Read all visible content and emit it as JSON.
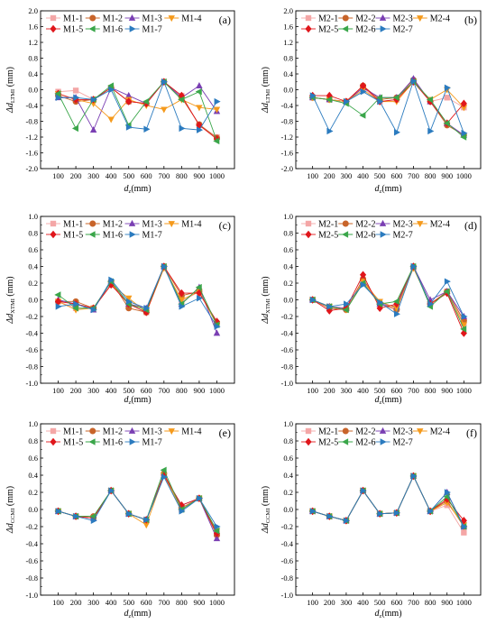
{
  "chart_data": [
    {
      "panel": "(a)",
      "type": "line",
      "ylabel": {
        "main": "Δd",
        "sub": "LTMI",
        "unit": " (mm)"
      },
      "xlabel": {
        "main": "d",
        "sub": "z",
        "unit": "(mm)"
      },
      "x": [
        100,
        200,
        300,
        400,
        500,
        600,
        700,
        800,
        900,
        1000
      ],
      "ylim": [
        -2.0,
        2.0
      ],
      "yticks": [
        "-2.0",
        "-1.6",
        "-1.2",
        "-0.8",
        "-0.4",
        "0.0",
        "0.4",
        "0.8",
        "1.2",
        "1.6",
        "2.0"
      ],
      "series": [
        {
          "name": "M1-1",
          "values": [
            -0.05,
            -0.02,
            -0.25,
            0.05,
            -0.3,
            -0.35,
            0.2,
            -0.15,
            -0.9,
            -1.2
          ]
        },
        {
          "name": "M1-2",
          "values": [
            -0.15,
            -0.3,
            -0.25,
            0.05,
            -0.3,
            -0.35,
            0.2,
            -0.2,
            -0.88,
            -1.22
          ]
        },
        {
          "name": "M1-3",
          "values": [
            -0.2,
            -0.2,
            -1.02,
            0.05,
            -0.15,
            -0.35,
            0.2,
            -0.2,
            0.1,
            -0.55
          ]
        },
        {
          "name": "M1-4",
          "values": [
            -0.1,
            -0.25,
            -0.35,
            -0.75,
            -0.25,
            -0.4,
            -0.5,
            -0.25,
            -0.45,
            -0.5
          ]
        },
        {
          "name": "M1-5",
          "values": [
            -0.1,
            -0.25,
            -0.25,
            0.05,
            -0.3,
            -0.35,
            0.2,
            -0.15,
            -0.9,
            -1.25
          ]
        },
        {
          "name": "M1-6",
          "values": [
            -0.1,
            -0.98,
            -0.25,
            0.1,
            -0.9,
            -0.3,
            0.2,
            -0.25,
            -0.05,
            -1.3
          ]
        },
        {
          "name": "M1-7",
          "values": [
            -0.2,
            -0.2,
            -0.25,
            0.0,
            -0.95,
            -1.0,
            0.2,
            -0.98,
            -1.02,
            -0.3
          ]
        }
      ],
      "legend_cols": 4
    },
    {
      "panel": "(b)",
      "type": "line",
      "ylabel": {
        "main": "Δd",
        "sub": "LTMI",
        "unit": " (mm)"
      },
      "xlabel": {
        "main": "d",
        "sub": "z",
        "unit": "(mm)"
      },
      "x": [
        100,
        200,
        300,
        400,
        500,
        600,
        700,
        800,
        900,
        1000
      ],
      "ylim": [
        -2.0,
        2.0
      ],
      "yticks": [
        "-2.0",
        "-1.6",
        "-1.2",
        "-0.8",
        "-0.4",
        "0.0",
        "0.4",
        "0.8",
        "1.2",
        "1.6",
        "2.0"
      ],
      "series": [
        {
          "name": "M2-1",
          "values": [
            -0.2,
            -0.25,
            -0.3,
            0.05,
            -0.3,
            -0.25,
            0.2,
            -0.3,
            -0.2,
            -0.45
          ]
        },
        {
          "name": "M2-2",
          "values": [
            -0.2,
            -0.25,
            -0.3,
            0.1,
            -0.25,
            -0.2,
            0.25,
            -0.3,
            -0.9,
            -1.15
          ]
        },
        {
          "name": "M2-3",
          "values": [
            -0.2,
            -0.25,
            -0.3,
            0.05,
            -0.2,
            -0.2,
            0.28,
            -0.3,
            -0.85,
            -1.15
          ]
        },
        {
          "name": "M2-4",
          "values": [
            -0.2,
            -0.25,
            -0.3,
            0.0,
            -0.3,
            -0.3,
            0.2,
            -0.25,
            0.0,
            -0.45
          ]
        },
        {
          "name": "M2-5",
          "values": [
            -0.15,
            -0.15,
            -0.3,
            0.1,
            -0.3,
            -0.25,
            0.2,
            -0.3,
            -0.85,
            -0.35
          ]
        },
        {
          "name": "M2-6",
          "values": [
            -0.2,
            -0.25,
            -0.35,
            -0.65,
            -0.2,
            -0.2,
            0.2,
            -0.25,
            -0.85,
            -1.2
          ]
        },
        {
          "name": "M2-7",
          "values": [
            -0.15,
            -1.05,
            -0.3,
            -0.05,
            -0.3,
            -1.08,
            0.22,
            -1.05,
            0.05,
            -1.1
          ]
        }
      ],
      "legend_cols": 4
    },
    {
      "panel": "(c)",
      "type": "line",
      "ylabel": {
        "main": "Δd",
        "sub": "XTMI",
        "unit": " (mm)"
      },
      "xlabel": {
        "main": "d",
        "sub": "z",
        "unit": "(mm)"
      },
      "x": [
        100,
        200,
        300,
        400,
        500,
        600,
        700,
        800,
        900,
        1000
      ],
      "ylim": [
        -1.0,
        1.0
      ],
      "yticks": [
        "-1.0",
        "-0.8",
        "-0.6",
        "-0.4",
        "-0.2",
        "0.0",
        "0.2",
        "0.4",
        "0.6",
        "0.8",
        "1.0"
      ],
      "series": [
        {
          "name": "M1-1",
          "values": [
            -0.02,
            -0.1,
            -0.1,
            0.18,
            -0.05,
            -0.15,
            0.4,
            -0.02,
            0.1,
            -0.3
          ]
        },
        {
          "name": "M1-2",
          "values": [
            -0.02,
            -0.02,
            -0.1,
            0.22,
            -0.1,
            -0.15,
            0.4,
            0.05,
            0.1,
            -0.28
          ]
        },
        {
          "name": "M1-3",
          "values": [
            0.0,
            -0.05,
            -0.12,
            0.22,
            -0.05,
            -0.1,
            0.4,
            -0.05,
            0.15,
            -0.4
          ]
        },
        {
          "name": "M1-4",
          "values": [
            -0.02,
            -0.12,
            -0.1,
            0.18,
            0.02,
            -0.15,
            0.38,
            0.0,
            0.1,
            -0.3
          ]
        },
        {
          "name": "M1-5",
          "values": [
            -0.02,
            -0.05,
            -0.1,
            0.18,
            -0.05,
            -0.15,
            0.4,
            0.08,
            0.08,
            -0.26
          ]
        },
        {
          "name": "M1-6",
          "values": [
            0.06,
            -0.1,
            -0.1,
            0.22,
            -0.05,
            -0.12,
            0.4,
            -0.05,
            0.15,
            -0.3
          ]
        },
        {
          "name": "M1-7",
          "values": [
            -0.08,
            -0.05,
            -0.12,
            0.24,
            -0.02,
            -0.1,
            0.4,
            -0.08,
            0.02,
            -0.32
          ]
        }
      ],
      "legend_cols": 4
    },
    {
      "panel": "(d)",
      "type": "line",
      "ylabel": {
        "main": "Δd",
        "sub": "XTMI",
        "unit": " (mm)"
      },
      "xlabel": {
        "main": "d",
        "sub": "z",
        "unit": "(mm)"
      },
      "x": [
        100,
        200,
        300,
        400,
        500,
        600,
        700,
        800,
        900,
        1000
      ],
      "ylim": [
        -1.0,
        1.0
      ],
      "yticks": [
        "-1.0",
        "-0.8",
        "-0.6",
        "-0.4",
        "-0.2",
        "0.0",
        "0.2",
        "0.4",
        "0.6",
        "0.8",
        "1.0"
      ],
      "series": [
        {
          "name": "M2-1",
          "values": [
            0.0,
            -0.08,
            -0.1,
            0.22,
            -0.05,
            -0.1,
            0.38,
            -0.05,
            0.1,
            -0.28
          ]
        },
        {
          "name": "M2-2",
          "values": [
            0.0,
            -0.1,
            -0.12,
            0.25,
            -0.05,
            -0.12,
            0.4,
            -0.05,
            0.1,
            -0.25
          ]
        },
        {
          "name": "M2-3",
          "values": [
            0.0,
            -0.08,
            -0.1,
            0.2,
            -0.05,
            -0.08,
            0.4,
            0.0,
            0.1,
            -0.2
          ]
        },
        {
          "name": "M2-4",
          "values": [
            0.0,
            -0.08,
            -0.12,
            0.22,
            -0.02,
            -0.1,
            0.38,
            -0.05,
            0.08,
            -0.3
          ]
        },
        {
          "name": "M2-5",
          "values": [
            0.0,
            -0.13,
            -0.1,
            0.3,
            -0.1,
            -0.05,
            0.4,
            -0.05,
            0.08,
            -0.4
          ]
        },
        {
          "name": "M2-6",
          "values": [
            0.0,
            -0.08,
            -0.12,
            0.2,
            -0.05,
            -0.02,
            0.4,
            -0.08,
            0.1,
            -0.35
          ]
        },
        {
          "name": "M2-7",
          "values": [
            0.0,
            -0.08,
            -0.05,
            0.18,
            -0.03,
            -0.17,
            0.4,
            -0.05,
            0.22,
            -0.2
          ]
        }
      ],
      "legend_cols": 4
    },
    {
      "panel": "(e)",
      "type": "line",
      "ylabel": {
        "main": "Δd",
        "sub": "CCMI",
        "unit": " (mm)"
      },
      "xlabel": {
        "main": "d",
        "sub": "z",
        "unit": "(mm)"
      },
      "x": [
        100,
        200,
        300,
        400,
        500,
        600,
        700,
        800,
        900,
        1000
      ],
      "ylim": [
        -1.0,
        1.0
      ],
      "yticks": [
        "-1.0",
        "-0.8",
        "-0.6",
        "-0.4",
        "-0.2",
        "0.0",
        "0.2",
        "0.4",
        "0.6",
        "0.8",
        "1.0"
      ],
      "series": [
        {
          "name": "M1-1",
          "values": [
            -0.02,
            -0.08,
            -0.1,
            0.22,
            -0.05,
            -0.12,
            0.4,
            0.0,
            0.13,
            -0.28
          ]
        },
        {
          "name": "M1-2",
          "values": [
            -0.02,
            -0.08,
            -0.08,
            0.22,
            -0.05,
            -0.12,
            0.42,
            0.02,
            0.13,
            -0.3
          ]
        },
        {
          "name": "M1-3",
          "values": [
            -0.02,
            -0.08,
            -0.1,
            0.22,
            -0.05,
            -0.12,
            0.4,
            0.05,
            0.13,
            -0.34
          ]
        },
        {
          "name": "M1-4",
          "values": [
            -0.02,
            -0.08,
            -0.1,
            0.22,
            -0.05,
            -0.18,
            0.4,
            0.0,
            0.13,
            -0.25
          ]
        },
        {
          "name": "M1-5",
          "values": [
            -0.02,
            -0.08,
            -0.1,
            0.22,
            -0.05,
            -0.12,
            0.4,
            0.05,
            0.13,
            -0.28
          ]
        },
        {
          "name": "M1-6",
          "values": [
            -0.02,
            -0.08,
            -0.08,
            0.22,
            -0.05,
            -0.12,
            0.46,
            0.0,
            0.13,
            -0.25
          ]
        },
        {
          "name": "M1-7",
          "values": [
            -0.02,
            -0.08,
            -0.13,
            0.22,
            -0.05,
            -0.12,
            0.38,
            -0.02,
            0.13,
            -0.2
          ]
        }
      ],
      "legend_cols": 4
    },
    {
      "panel": "(f)",
      "type": "line",
      "ylabel": {
        "main": "Δd",
        "sub": "CCMI",
        "unit": " (mm)"
      },
      "xlabel": {
        "main": "d",
        "sub": "z",
        "unit": "(mm)"
      },
      "x": [
        100,
        200,
        300,
        400,
        500,
        600,
        700,
        800,
        900,
        1000
      ],
      "ylim": [
        -1.0,
        1.0
      ],
      "yticks": [
        "-1.0",
        "-0.8",
        "-0.6",
        "-0.4",
        "-0.2",
        "0.0",
        "0.2",
        "0.4",
        "0.6",
        "0.8",
        "1.0"
      ],
      "series": [
        {
          "name": "M2-1",
          "values": [
            -0.02,
            -0.08,
            -0.13,
            0.22,
            -0.05,
            -0.04,
            0.39,
            -0.02,
            0.05,
            -0.27
          ]
        },
        {
          "name": "M2-2",
          "values": [
            -0.02,
            -0.08,
            -0.13,
            0.22,
            -0.05,
            -0.04,
            0.39,
            -0.02,
            0.1,
            -0.2
          ]
        },
        {
          "name": "M2-3",
          "values": [
            -0.02,
            -0.08,
            -0.13,
            0.22,
            -0.05,
            -0.04,
            0.39,
            -0.02,
            0.2,
            -0.2
          ]
        },
        {
          "name": "M2-4",
          "values": [
            -0.02,
            -0.08,
            -0.13,
            0.22,
            -0.05,
            -0.04,
            0.39,
            -0.02,
            0.08,
            -0.18
          ]
        },
        {
          "name": "M2-5",
          "values": [
            -0.02,
            -0.08,
            -0.13,
            0.22,
            -0.05,
            -0.04,
            0.39,
            -0.02,
            0.12,
            -0.13
          ]
        },
        {
          "name": "M2-6",
          "values": [
            -0.02,
            -0.08,
            -0.13,
            0.22,
            -0.05,
            -0.04,
            0.39,
            -0.02,
            0.15,
            -0.2
          ]
        },
        {
          "name": "M2-7",
          "values": [
            -0.02,
            -0.08,
            -0.13,
            0.22,
            -0.05,
            -0.04,
            0.39,
            -0.02,
            0.2,
            -0.2
          ]
        }
      ],
      "legend_cols": 4
    }
  ],
  "series_styles": [
    {
      "color": "#f4a6a6",
      "marker": "square"
    },
    {
      "color": "#c8642a",
      "marker": "circle"
    },
    {
      "color": "#7a3fb3",
      "marker": "triangle-up"
    },
    {
      "color": "#f59a1c",
      "marker": "triangle-down"
    },
    {
      "color": "#e0161b",
      "marker": "diamond"
    },
    {
      "color": "#3aa64a",
      "marker": "triangle-left"
    },
    {
      "color": "#2b7bbf",
      "marker": "triangle-right"
    }
  ]
}
